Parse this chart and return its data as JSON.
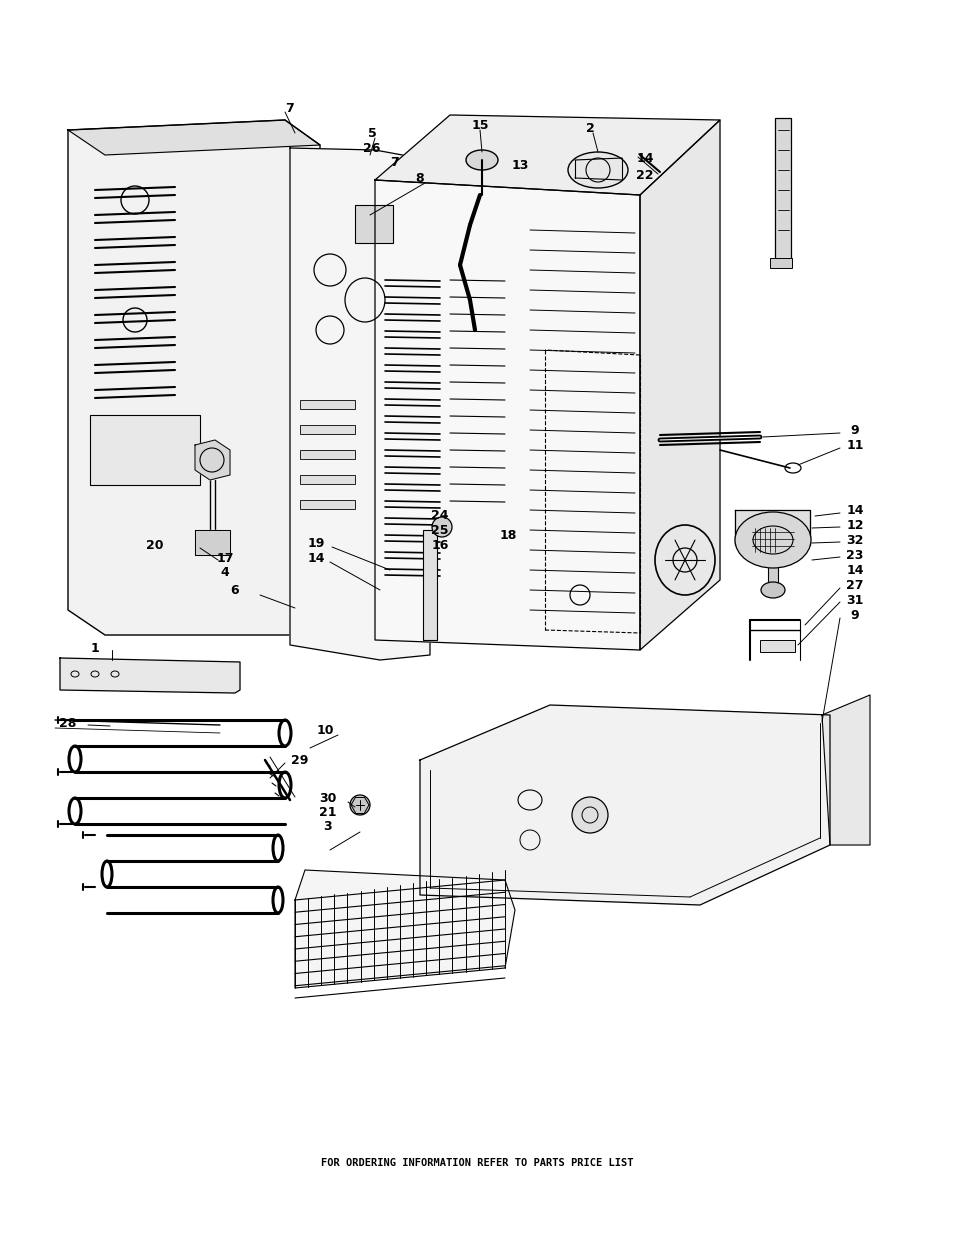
{
  "footer_text": "FOR ORDERING INFORMATION REFER TO PARTS PRICE LIST",
  "footer_fontsize": 7.5,
  "footer_fontweight": "bold",
  "bg_color": "#ffffff",
  "line_color": "#000000",
  "figsize": [
    9.54,
    12.35
  ],
  "dpi": 100
}
